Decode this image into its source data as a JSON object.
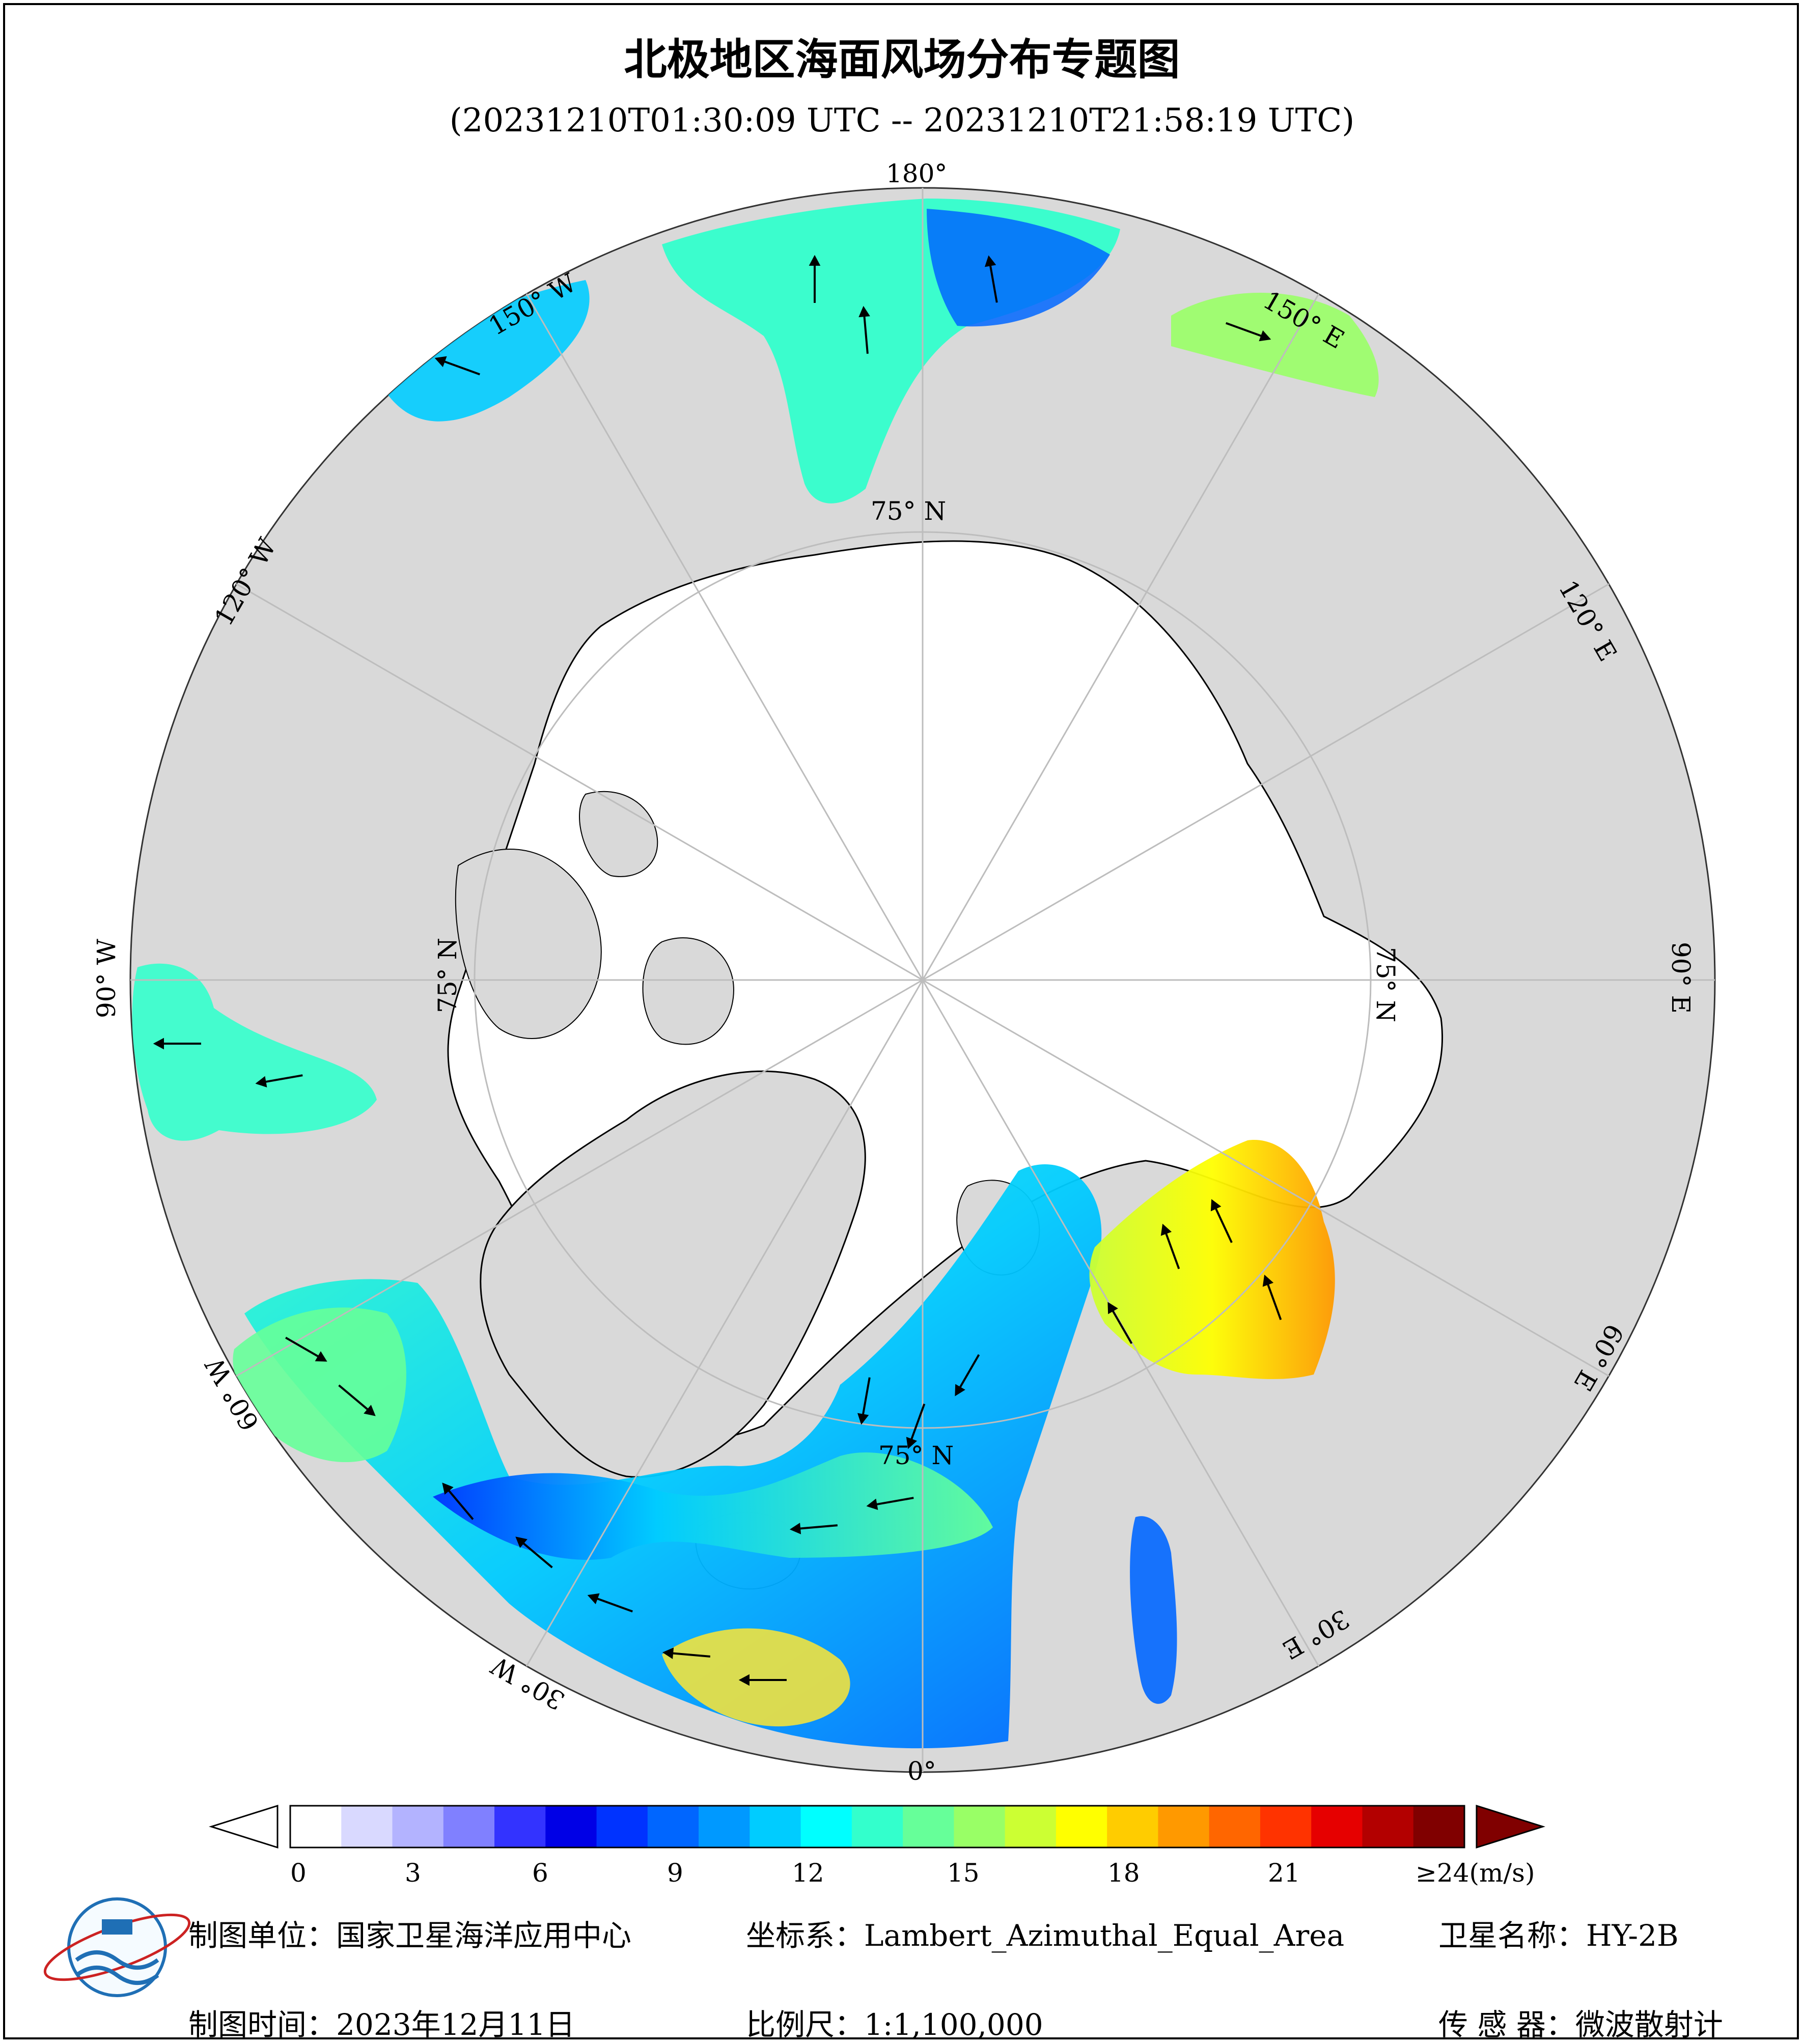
{
  "title": "北极地区海面风场分布专题图",
  "subtitle": "(20231210T01:30:09 UTC -- 20231210T21:58:19 UTC)",
  "map": {
    "longitude_labels": [
      "180°",
      "150° E",
      "120° E",
      "90° E",
      "60° E",
      "30° E",
      "0°",
      "30° W",
      "60° W",
      "90° W",
      "120° W",
      "150° W"
    ],
    "latitude_labels": [
      "75° N",
      "75° N",
      "75° N",
      "75° N"
    ],
    "colors": {
      "ocean_ice": "#ffffff",
      "land": "#d9d9d9",
      "graticule": "#bdbdbd"
    }
  },
  "colorbar": {
    "unit": "(m/s)",
    "tick_labels": [
      "0",
      "3",
      "6",
      "9",
      "12",
      "15",
      "18",
      "21",
      "≥24(m/s)"
    ],
    "tick_values": [
      0,
      3,
      6,
      9,
      12,
      15,
      18,
      21,
      24
    ],
    "range": [
      0,
      24
    ],
    "colors": [
      "#ffffff",
      "#d9d9ff",
      "#b3b3ff",
      "#8080ff",
      "#3333ff",
      "#0000e6",
      "#0033ff",
      "#0066ff",
      "#0099ff",
      "#00ccff",
      "#00ffff",
      "#33ffcc",
      "#66ff99",
      "#99ff66",
      "#ccff33",
      "#ffff00",
      "#ffcc00",
      "#ff9900",
      "#ff6600",
      "#ff3300",
      "#e60000",
      "#b30000",
      "#800000"
    ]
  },
  "footer": {
    "unit_label": "制图单位：",
    "unit_value": "国家卫星海洋应用中心",
    "time_label": "制图时间：",
    "time_value": "2023年12月11日",
    "coord_label": "坐标系：",
    "coord_value": "Lambert_Azimuthal_Equal_Area",
    "scale_label": "比例尺：",
    "scale_value": "1:1,100,000",
    "sat_label": "卫星名称：",
    "sat_value": "HY-2B",
    "sensor_label": "传 感 器：",
    "sensor_value": "微波散射计"
  }
}
